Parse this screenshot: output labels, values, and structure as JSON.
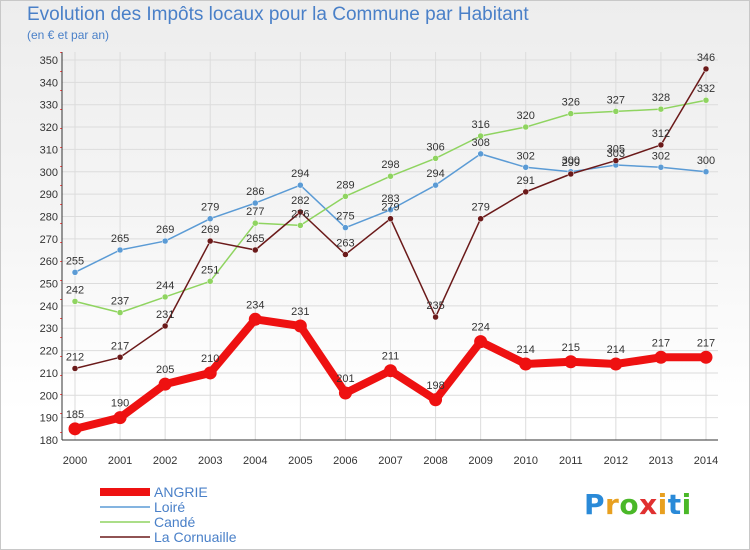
{
  "title": "Evolution des Impôts locaux pour la Commune par Habitant",
  "subtitle": "(en € et par an)",
  "logo": {
    "text": "Proxiti",
    "colors": [
      "#2a8ad8",
      "#e8a020",
      "#4ab828",
      "#e03030",
      "#e8a020",
      "#2a8ad8",
      "#4ab828"
    ]
  },
  "chart_data": {
    "type": "line",
    "x": [
      2000,
      2001,
      2002,
      2003,
      2004,
      2005,
      2006,
      2007,
      2008,
      2009,
      2010,
      2011,
      2012,
      2013,
      2014
    ],
    "ylim": [
      180,
      350
    ],
    "yticks": [
      180,
      190,
      200,
      210,
      220,
      230,
      240,
      250,
      260,
      270,
      280,
      290,
      300,
      310,
      320,
      330,
      340,
      350
    ],
    "grid": true,
    "legend": "bottom-left",
    "series": [
      {
        "name": "ANGRIE",
        "color": "#ee1111",
        "values": [
          185,
          190,
          205,
          210,
          234,
          231,
          201,
          211,
          198,
          224,
          214,
          215,
          214,
          217,
          217
        ]
      },
      {
        "name": "Loiré",
        "color": "#5b9bd5",
        "values": [
          255,
          265,
          269,
          279,
          286,
          294,
          275,
          283,
          294,
          308,
          302,
          300,
          303,
          302,
          300
        ]
      },
      {
        "name": "Candé",
        "color": "#8fd460",
        "values": [
          242,
          237,
          244,
          251,
          277,
          276,
          289,
          298,
          306,
          316,
          320,
          326,
          327,
          328,
          332
        ]
      },
      {
        "name": "La Cornuaille",
        "color": "#6b1a1a",
        "values": [
          212,
          217,
          231,
          269,
          265,
          282,
          263,
          279,
          235,
          279,
          291,
          299,
          305,
          312,
          346
        ]
      }
    ]
  }
}
